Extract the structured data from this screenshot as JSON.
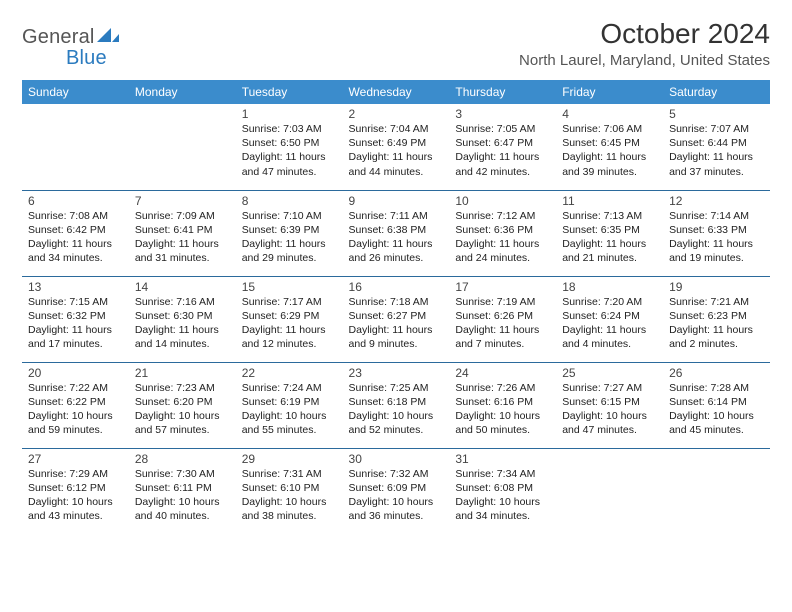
{
  "logo": {
    "general": "General",
    "blue": "Blue"
  },
  "title": "October 2024",
  "location": "North Laurel, Maryland, United States",
  "colors": {
    "header_bg": "#3b8ccc",
    "header_text": "#ffffff",
    "rule": "#2b6a9c",
    "accent": "#2b7bbf"
  },
  "dayHeaders": [
    "Sunday",
    "Monday",
    "Tuesday",
    "Wednesday",
    "Thursday",
    "Friday",
    "Saturday"
  ],
  "weeks": [
    [
      null,
      null,
      {
        "n": "1",
        "sr": "Sunrise: 7:03 AM",
        "ss": "Sunset: 6:50 PM",
        "d1": "Daylight: 11 hours",
        "d2": "and 47 minutes."
      },
      {
        "n": "2",
        "sr": "Sunrise: 7:04 AM",
        "ss": "Sunset: 6:49 PM",
        "d1": "Daylight: 11 hours",
        "d2": "and 44 minutes."
      },
      {
        "n": "3",
        "sr": "Sunrise: 7:05 AM",
        "ss": "Sunset: 6:47 PM",
        "d1": "Daylight: 11 hours",
        "d2": "and 42 minutes."
      },
      {
        "n": "4",
        "sr": "Sunrise: 7:06 AM",
        "ss": "Sunset: 6:45 PM",
        "d1": "Daylight: 11 hours",
        "d2": "and 39 minutes."
      },
      {
        "n": "5",
        "sr": "Sunrise: 7:07 AM",
        "ss": "Sunset: 6:44 PM",
        "d1": "Daylight: 11 hours",
        "d2": "and 37 minutes."
      }
    ],
    [
      {
        "n": "6",
        "sr": "Sunrise: 7:08 AM",
        "ss": "Sunset: 6:42 PM",
        "d1": "Daylight: 11 hours",
        "d2": "and 34 minutes."
      },
      {
        "n": "7",
        "sr": "Sunrise: 7:09 AM",
        "ss": "Sunset: 6:41 PM",
        "d1": "Daylight: 11 hours",
        "d2": "and 31 minutes."
      },
      {
        "n": "8",
        "sr": "Sunrise: 7:10 AM",
        "ss": "Sunset: 6:39 PM",
        "d1": "Daylight: 11 hours",
        "d2": "and 29 minutes."
      },
      {
        "n": "9",
        "sr": "Sunrise: 7:11 AM",
        "ss": "Sunset: 6:38 PM",
        "d1": "Daylight: 11 hours",
        "d2": "and 26 minutes."
      },
      {
        "n": "10",
        "sr": "Sunrise: 7:12 AM",
        "ss": "Sunset: 6:36 PM",
        "d1": "Daylight: 11 hours",
        "d2": "and 24 minutes."
      },
      {
        "n": "11",
        "sr": "Sunrise: 7:13 AM",
        "ss": "Sunset: 6:35 PM",
        "d1": "Daylight: 11 hours",
        "d2": "and 21 minutes."
      },
      {
        "n": "12",
        "sr": "Sunrise: 7:14 AM",
        "ss": "Sunset: 6:33 PM",
        "d1": "Daylight: 11 hours",
        "d2": "and 19 minutes."
      }
    ],
    [
      {
        "n": "13",
        "sr": "Sunrise: 7:15 AM",
        "ss": "Sunset: 6:32 PM",
        "d1": "Daylight: 11 hours",
        "d2": "and 17 minutes."
      },
      {
        "n": "14",
        "sr": "Sunrise: 7:16 AM",
        "ss": "Sunset: 6:30 PM",
        "d1": "Daylight: 11 hours",
        "d2": "and 14 minutes."
      },
      {
        "n": "15",
        "sr": "Sunrise: 7:17 AM",
        "ss": "Sunset: 6:29 PM",
        "d1": "Daylight: 11 hours",
        "d2": "and 12 minutes."
      },
      {
        "n": "16",
        "sr": "Sunrise: 7:18 AM",
        "ss": "Sunset: 6:27 PM",
        "d1": "Daylight: 11 hours",
        "d2": "and 9 minutes."
      },
      {
        "n": "17",
        "sr": "Sunrise: 7:19 AM",
        "ss": "Sunset: 6:26 PM",
        "d1": "Daylight: 11 hours",
        "d2": "and 7 minutes."
      },
      {
        "n": "18",
        "sr": "Sunrise: 7:20 AM",
        "ss": "Sunset: 6:24 PM",
        "d1": "Daylight: 11 hours",
        "d2": "and 4 minutes."
      },
      {
        "n": "19",
        "sr": "Sunrise: 7:21 AM",
        "ss": "Sunset: 6:23 PM",
        "d1": "Daylight: 11 hours",
        "d2": "and 2 minutes."
      }
    ],
    [
      {
        "n": "20",
        "sr": "Sunrise: 7:22 AM",
        "ss": "Sunset: 6:22 PM",
        "d1": "Daylight: 10 hours",
        "d2": "and 59 minutes."
      },
      {
        "n": "21",
        "sr": "Sunrise: 7:23 AM",
        "ss": "Sunset: 6:20 PM",
        "d1": "Daylight: 10 hours",
        "d2": "and 57 minutes."
      },
      {
        "n": "22",
        "sr": "Sunrise: 7:24 AM",
        "ss": "Sunset: 6:19 PM",
        "d1": "Daylight: 10 hours",
        "d2": "and 55 minutes."
      },
      {
        "n": "23",
        "sr": "Sunrise: 7:25 AM",
        "ss": "Sunset: 6:18 PM",
        "d1": "Daylight: 10 hours",
        "d2": "and 52 minutes."
      },
      {
        "n": "24",
        "sr": "Sunrise: 7:26 AM",
        "ss": "Sunset: 6:16 PM",
        "d1": "Daylight: 10 hours",
        "d2": "and 50 minutes."
      },
      {
        "n": "25",
        "sr": "Sunrise: 7:27 AM",
        "ss": "Sunset: 6:15 PM",
        "d1": "Daylight: 10 hours",
        "d2": "and 47 minutes."
      },
      {
        "n": "26",
        "sr": "Sunrise: 7:28 AM",
        "ss": "Sunset: 6:14 PM",
        "d1": "Daylight: 10 hours",
        "d2": "and 45 minutes."
      }
    ],
    [
      {
        "n": "27",
        "sr": "Sunrise: 7:29 AM",
        "ss": "Sunset: 6:12 PM",
        "d1": "Daylight: 10 hours",
        "d2": "and 43 minutes."
      },
      {
        "n": "28",
        "sr": "Sunrise: 7:30 AM",
        "ss": "Sunset: 6:11 PM",
        "d1": "Daylight: 10 hours",
        "d2": "and 40 minutes."
      },
      {
        "n": "29",
        "sr": "Sunrise: 7:31 AM",
        "ss": "Sunset: 6:10 PM",
        "d1": "Daylight: 10 hours",
        "d2": "and 38 minutes."
      },
      {
        "n": "30",
        "sr": "Sunrise: 7:32 AM",
        "ss": "Sunset: 6:09 PM",
        "d1": "Daylight: 10 hours",
        "d2": "and 36 minutes."
      },
      {
        "n": "31",
        "sr": "Sunrise: 7:34 AM",
        "ss": "Sunset: 6:08 PM",
        "d1": "Daylight: 10 hours",
        "d2": "and 34 minutes."
      },
      null,
      null
    ]
  ]
}
